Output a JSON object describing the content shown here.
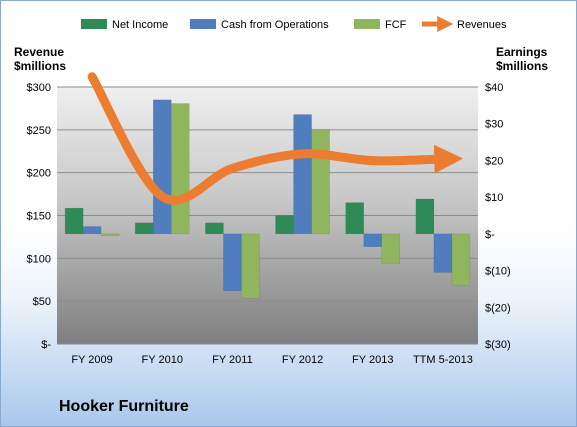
{
  "company": "Hooker Furniture",
  "colors": {
    "net_income": "#2e8b57",
    "cash_from_operations": "#4f7dbe",
    "fcf": "#8fb55f",
    "revenues": "#ec7c30"
  },
  "chart_data": {
    "type": "bar",
    "categories": [
      "FY 2009",
      "FY 2010",
      "FY 2011",
      "FY 2012",
      "FY 2013",
      "TTM 5-2013"
    ],
    "series": [
      {
        "name": "Net Income",
        "values": [
          7,
          3,
          3,
          5,
          8.5,
          9.5
        ]
      },
      {
        "name": "Cash from Operations",
        "values": [
          2,
          36.5,
          -15.5,
          32.5,
          -3.5,
          -10.5
        ]
      },
      {
        "name": "FCF",
        "values": [
          -0.5,
          35.5,
          -17.5,
          28.5,
          -8,
          -14
        ]
      }
    ],
    "line_series": {
      "name": "Revenues",
      "values": [
        312,
        172,
        205,
        222,
        214,
        216
      ]
    },
    "left_axis": {
      "title_line1": "Revenue",
      "title_line2": "$millions",
      "ylim": [
        0,
        300
      ],
      "ticks": [
        0,
        50,
        100,
        150,
        200,
        250,
        300
      ],
      "tick_labels": [
        "$-",
        "$50",
        "$100",
        "$150",
        "$200",
        "$250",
        "$300"
      ]
    },
    "right_axis": {
      "title_line1": "Earnings",
      "title_line2": "$millions",
      "ylim": [
        -30,
        40
      ],
      "ticks": [
        -30,
        -20,
        -10,
        0,
        10,
        20,
        30,
        40
      ],
      "tick_labels": [
        "$(30)",
        "$(20)",
        "$(10)",
        "$-",
        "$10",
        "$20",
        "$30",
        "$40"
      ]
    },
    "legend_position": "top",
    "grid": true
  }
}
